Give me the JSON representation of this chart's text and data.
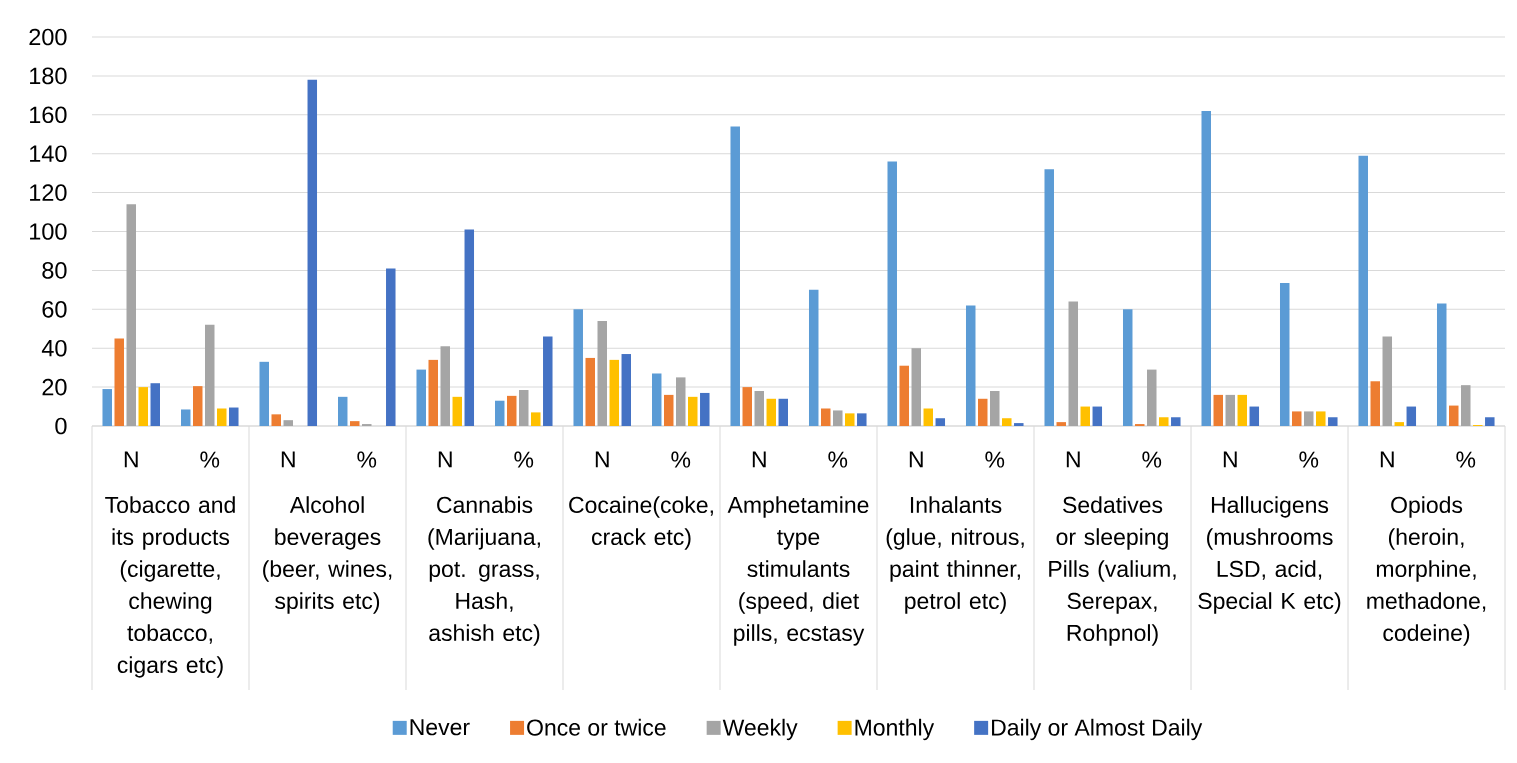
{
  "chart_data": {
    "type": "bar",
    "categories": [
      "N",
      "%",
      "N",
      "%",
      "N",
      "%",
      "N",
      "%",
      "N",
      "%",
      "N",
      "%",
      "N",
      "%",
      "N",
      "%",
      "N",
      "%"
    ],
    "annotations": [
      "Tobacco and its products (cigarette, chewing tobacco, cigars etc)",
      "Alcohol beverages (beer, wines, spirits etc)",
      "Cannabis (Marijuana, pot. grass, Hash, ashish etc)",
      "Cocaine(coke, crack etc)",
      "Amphetamine type stimulants (speed, diet pills, ecstasy",
      "Inhalants (glue, nitrous, paint thinner, petrol etc)",
      "Sedatives or sleeping Pills (valium, Serepax, Rohpnol)",
      "Hallucigens (mushrooms LSD, acid, Special K etc)",
      "Opiods (heroin, morphine, methadone, codeine)"
    ],
    "series": [
      {
        "name": "Never",
        "color": "#5b9bd5",
        "values": [
          19,
          8.5,
          33,
          15,
          29,
          13,
          60,
          27,
          154,
          70,
          136,
          62,
          132,
          60,
          162,
          73.5,
          139,
          63
        ]
      },
      {
        "name": "Once  or twice",
        "color": "#ed7d31",
        "values": [
          45,
          20.5,
          6,
          2.5,
          34,
          15.5,
          35,
          16,
          20,
          9,
          31,
          14,
          2,
          1,
          16,
          7.5,
          23,
          10.5
        ]
      },
      {
        "name": "Weekly",
        "color": "#a5a5a5",
        "values": [
          114,
          52,
          3,
          1,
          41,
          18.5,
          54,
          25,
          18,
          8,
          40,
          18,
          64,
          29,
          16,
          7.5,
          46,
          21
        ]
      },
      {
        "name": "Monthly",
        "color": "#ffc000",
        "values": [
          20,
          9,
          0,
          0,
          15,
          7,
          34,
          15,
          14,
          6.5,
          9,
          4,
          10,
          4.5,
          16,
          7.5,
          2,
          0.5
        ]
      },
      {
        "name": "Daily or Almost Daily",
        "color": "#4472c4",
        "values": [
          22,
          9.5,
          178,
          81,
          101,
          46,
          37,
          17,
          14,
          6.5,
          4,
          1.5,
          10,
          4.5,
          10,
          4.5,
          10,
          4.5
        ]
      }
    ],
    "ylim": [
      0,
      200
    ],
    "yticks": [
      0,
      20,
      40,
      60,
      80,
      100,
      120,
      140,
      160,
      180,
      200
    ],
    "grid": "y",
    "legend": "bottom"
  }
}
